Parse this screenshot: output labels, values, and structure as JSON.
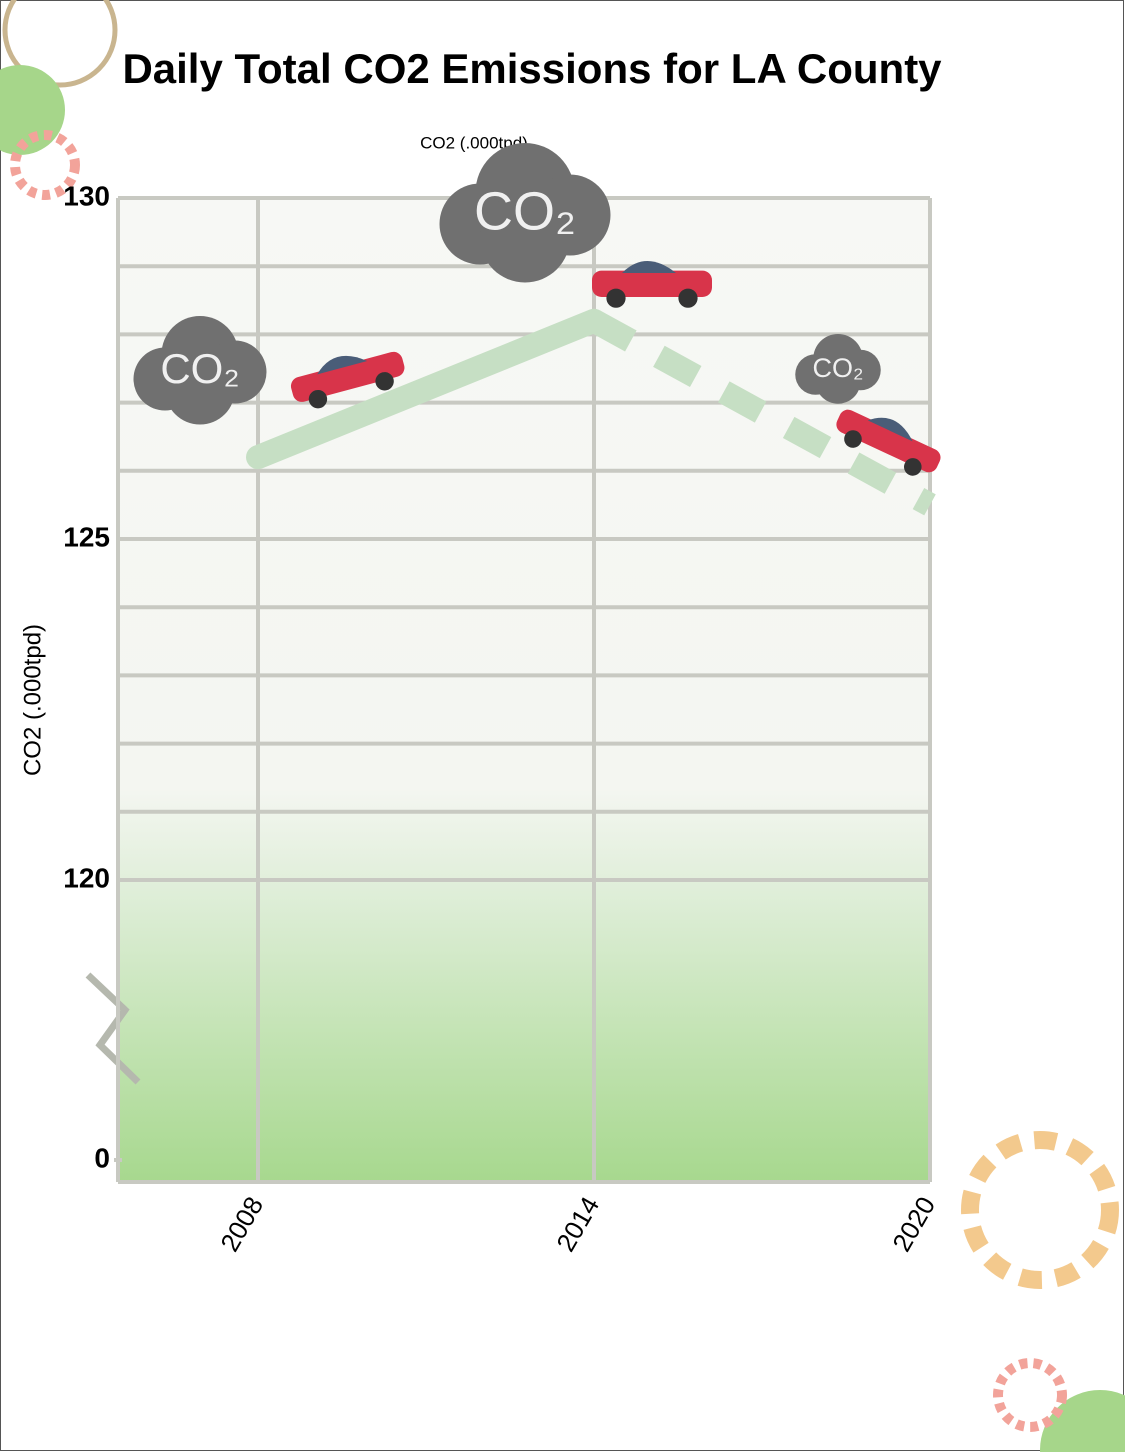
{
  "chart_data": {
    "type": "line",
    "title": "Daily Total CO2 Emissions for LA County",
    "subtitle": "CO2 (.000tpd)",
    "y_label": "CO2 (.000tpd)",
    "x": [
      2008,
      2014,
      2020
    ],
    "values": [
      126.2,
      128.2,
      125.5
    ],
    "segment_styles": [
      "solid",
      "dashed"
    ],
    "color": "#c6dfc4",
    "xlim": [
      2005.5,
      2020
    ],
    "xticks": [
      2008,
      2014,
      2020
    ],
    "ylim": [
      0,
      130
    ],
    "yticks": [
      0,
      120,
      125,
      130
    ],
    "y_break": [
      0,
      120
    ],
    "minor_yticks": [
      121,
      122,
      123,
      124,
      126,
      127,
      128,
      129
    ],
    "grid": true,
    "annotations": [
      "CO₂",
      "CO₂",
      "CO₂"
    ]
  }
}
